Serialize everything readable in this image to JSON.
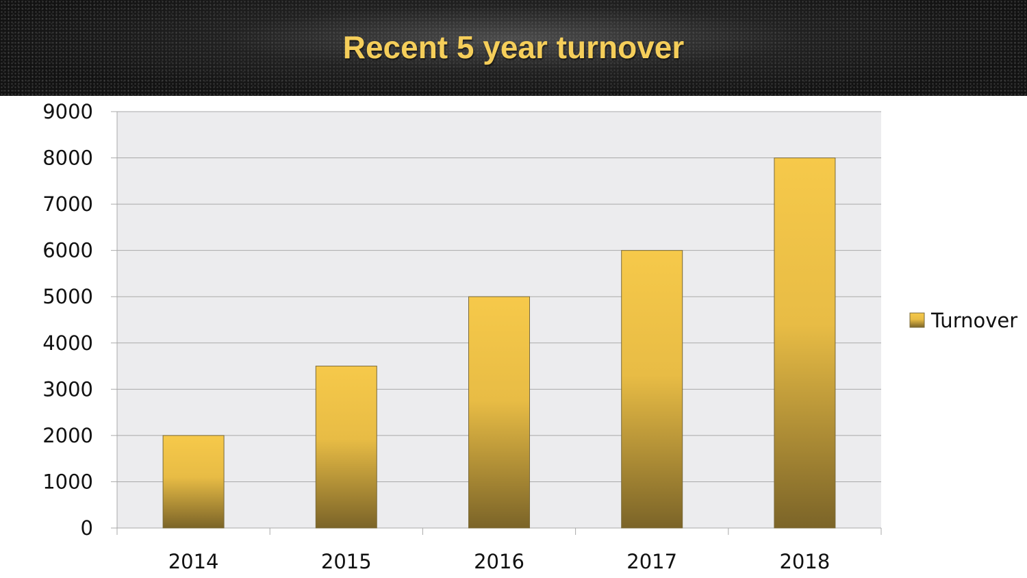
{
  "chart_data": {
    "type": "bar",
    "title": "Recent 5 year turnover",
    "categories": [
      "2014",
      "2015",
      "2016",
      "2017",
      "2018"
    ],
    "series": [
      {
        "name": "Turnover",
        "values": [
          2000,
          3500,
          5000,
          6000,
          8000
        ]
      }
    ],
    "ylim": [
      0,
      9000
    ],
    "yticks": [
      "0",
      "1000",
      "2000",
      "3000",
      "4000",
      "5000",
      "6000",
      "7000",
      "8000",
      "9000"
    ],
    "xlabel": "",
    "ylabel": "",
    "grid": true,
    "legend_position": "right",
    "colors": {
      "bar_top": "#f6c94a",
      "bar_bottom": "#7b6428",
      "plot_background": "#ececee",
      "title": "#f5ce5a"
    }
  }
}
